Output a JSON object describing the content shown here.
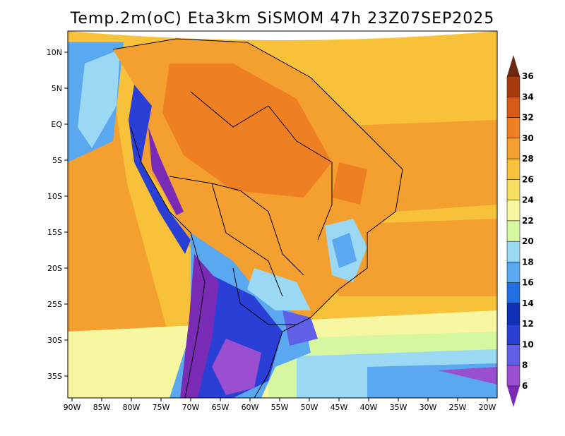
{
  "title": "Temp.2m(oC) Eta3km SiSMOM 47h 23Z07SEP2025",
  "lat_labels": [
    "10N",
    "5N",
    "EQ",
    "5S",
    "10S",
    "15S",
    "20S",
    "25S",
    "30S",
    "35S"
  ],
  "lon_labels": [
    "90W",
    "85W",
    "80W",
    "75W",
    "70W",
    "65W",
    "60W",
    "55W",
    "50W",
    "45W",
    "40W",
    "35W",
    "30W",
    "25W",
    "20W"
  ],
  "colorbar": {
    "labels": [
      "6",
      "8",
      "10",
      "12",
      "14",
      "16",
      "18",
      "20",
      "22",
      "24",
      "26",
      "28",
      "30",
      "32",
      "34",
      "36"
    ],
    "colors": [
      "#7a2bb5",
      "#9a4fd0",
      "#5f5fe8",
      "#2a3fd6",
      "#1030b8",
      "#1f6fe0",
      "#5aa8f0",
      "#9ad8f4",
      "#d6f7a0",
      "#f6f7a0",
      "#f7e060",
      "#f7c23a",
      "#f4a030",
      "#ee7f22",
      "#d75a16",
      "#a83a10",
      "#6b2a10"
    ]
  }
}
